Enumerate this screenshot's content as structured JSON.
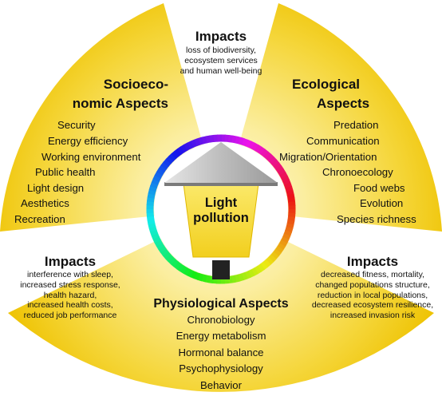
{
  "top_impacts": {
    "title": "Impacts",
    "lines": [
      "loss of biodiversity,",
      "ecosystem services",
      "and human well-being"
    ]
  },
  "socio": {
    "title_lines": [
      "Socioeco-",
      "nomic Aspects"
    ],
    "items": [
      "Security",
      "Energy efficiency",
      "Working environment",
      "Public health",
      "Light design",
      "Aesthetics",
      "Recreation"
    ]
  },
  "eco": {
    "title_lines": [
      "Ecological",
      "Aspects"
    ],
    "items": [
      "Predation",
      "Communication",
      "Migration/Orientation",
      "Chronoecology",
      "Food webs",
      "Evolution",
      "Species richness"
    ]
  },
  "left_impacts": {
    "title": "Impacts",
    "lines": [
      "interference with sleep,",
      "increased stress response,",
      "health hazard,",
      "increased health costs,",
      "reduced job performance"
    ]
  },
  "right_impacts": {
    "title": "Impacts",
    "lines": [
      "decreased fitness, mortality,",
      "changed populations structure,",
      "reduction in local populations,",
      "decreased ecosystem resilience,",
      "increased invasion risk"
    ]
  },
  "physio": {
    "title": "Physiological Aspects",
    "items": [
      "Chronobiology",
      "Energy metabolism",
      "Hormonal balance",
      "Psychophysiology",
      "Behavior"
    ]
  },
  "center": {
    "label_lines": [
      "Light",
      "pollution"
    ]
  },
  "colors": {
    "beam_yellow": "#f1c400",
    "beam_fade": "#fff6cc",
    "lamp_yellow": "#f7dd33",
    "lamp_roof": "#c8c8c8",
    "pole": "#222222"
  }
}
